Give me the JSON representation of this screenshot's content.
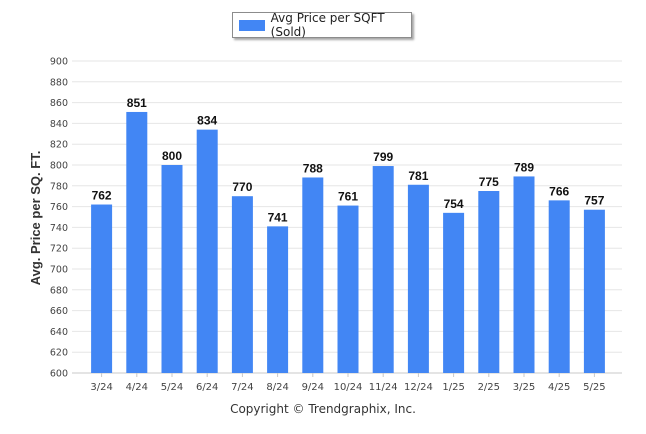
{
  "chart_data": {
    "type": "bar",
    "title": "",
    "xlabel": "",
    "ylabel": "Avg. Price per SQ. FT.",
    "ylim": [
      600,
      900
    ],
    "yticks": [
      600,
      620,
      640,
      660,
      680,
      700,
      720,
      740,
      760,
      780,
      800,
      820,
      840,
      860,
      880,
      900
    ],
    "grid": true,
    "legend_position": "top-center",
    "categories": [
      "3/24",
      "4/24",
      "5/24",
      "6/24",
      "7/24",
      "8/24",
      "9/24",
      "10/24",
      "11/24",
      "12/24",
      "1/25",
      "2/25",
      "3/25",
      "4/25",
      "5/25"
    ],
    "series": [
      {
        "name": "Avg Price per SQFT (Sold)",
        "color": "#4286f4",
        "values": [
          762,
          851,
          800,
          834,
          770,
          741,
          788,
          761,
          799,
          781,
          754,
          775,
          789,
          766,
          757
        ]
      }
    ]
  },
  "legend": {
    "label": "Avg Price per SQFT (Sold)"
  },
  "footer": {
    "copyright": "Copyright © Trendgraphix, Inc."
  }
}
